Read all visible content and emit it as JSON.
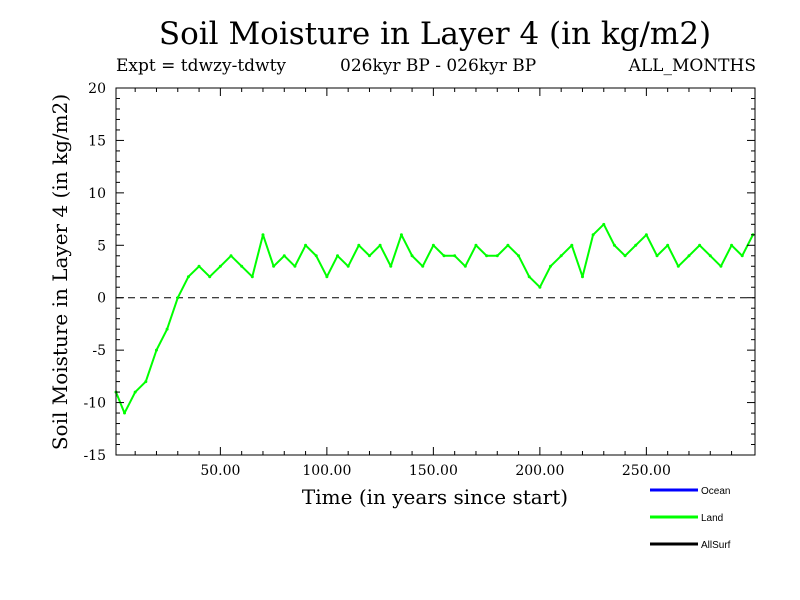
{
  "chart_data": {
    "type": "line",
    "title": "Soil Moisture in Layer 4 (in kg/m2)",
    "subtitle_left": "Expt = tdwzy-tdwty",
    "subtitle_center": "026kyr BP - 026kyr BP",
    "subtitle_right": "ALL_MONTHS",
    "xlabel": "Time (in years since start)",
    "ylabel": "Soil Moisture in Layer 4 (in kg/m2)",
    "xlim": [
      1,
      301
    ],
    "ylim": [
      -15,
      20
    ],
    "x_ticks": [
      50,
      100,
      150,
      200,
      250
    ],
    "x_tick_labels": [
      "50.00",
      "100.00",
      "150.00",
      "200.00",
      "250.00"
    ],
    "y_ticks": [
      -15,
      -10,
      -5,
      0,
      5,
      10,
      15,
      20
    ],
    "y_tick_labels": [
      "-15",
      "-10",
      "-5",
      "0",
      "5",
      "10",
      "15",
      "20"
    ],
    "zero_line": true,
    "legend_position": "bottom-right",
    "series": [
      {
        "name": "Land",
        "color": "#00ff00",
        "x": [
          1,
          5,
          10,
          15,
          20,
          25,
          30,
          35,
          40,
          45,
          50,
          55,
          60,
          65,
          70,
          75,
          80,
          85,
          90,
          95,
          100,
          105,
          110,
          115,
          120,
          125,
          130,
          135,
          140,
          145,
          150,
          155,
          160,
          165,
          170,
          175,
          180,
          185,
          190,
          195,
          200,
          205,
          210,
          215,
          220,
          225,
          230,
          235,
          240,
          245,
          250,
          255,
          260,
          265,
          270,
          275,
          280,
          285,
          290,
          295,
          300
        ],
        "y": [
          -9,
          -11,
          -9,
          -8,
          -5,
          -3,
          0,
          2,
          3,
          2,
          3,
          4,
          3,
          2,
          6,
          3,
          4,
          3,
          5,
          4,
          2,
          4,
          3,
          5,
          4,
          5,
          3,
          6,
          4,
          3,
          5,
          4,
          4,
          3,
          5,
          4,
          4,
          5,
          4,
          2,
          1,
          3,
          4,
          5,
          2,
          6,
          7,
          5,
          4,
          5,
          6,
          4,
          5,
          3,
          4,
          5,
          4,
          3,
          5,
          4,
          6
        ]
      }
    ],
    "legend": [
      {
        "name": "Ocean",
        "color": "#0000ff"
      },
      {
        "name": "Land",
        "color": "#00ff00"
      },
      {
        "name": "AllSurf",
        "color": "#000000"
      }
    ]
  }
}
